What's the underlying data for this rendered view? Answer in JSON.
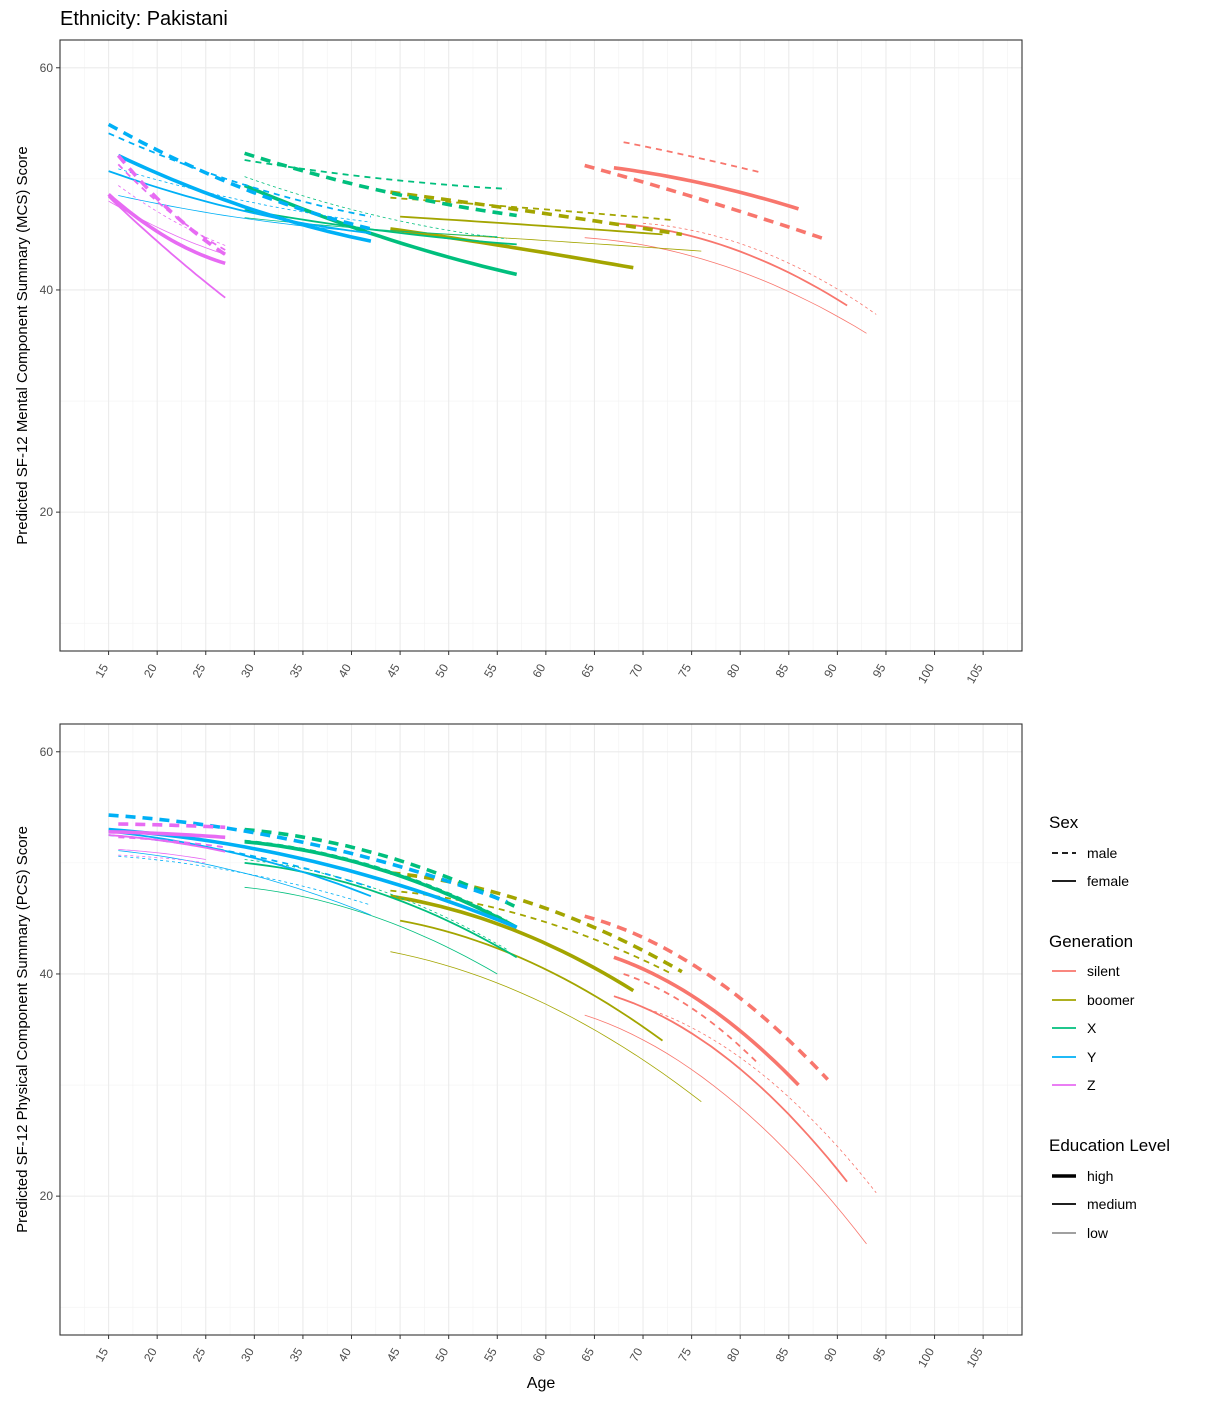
{
  "page_title": "Ethnicity: Pakistani",
  "colors": {
    "silent": "#F8766D",
    "boomer": "#A3A500",
    "X": "#00BF7D",
    "Y": "#00B0F6",
    "Z": "#E76BF3"
  },
  "legend": {
    "sex": {
      "title": "Sex",
      "items": [
        "male",
        "female"
      ]
    },
    "generation": {
      "title": "Generation",
      "items": [
        "silent",
        "boomer",
        "X",
        "Y",
        "Z"
      ]
    },
    "education": {
      "title": "Education Level",
      "items": [
        "high",
        "medium",
        "low"
      ]
    }
  },
  "chart_data": [
    {
      "type": "line",
      "id": "mcs",
      "title": "",
      "xlabel": "",
      "ylabel": "Predicted SF-12 Mental Component Summary (MCS) Score",
      "xlim": [
        10,
        109
      ],
      "ylim": [
        7.5,
        62.5
      ],
      "xticks": [
        15,
        20,
        25,
        30,
        35,
        40,
        45,
        50,
        55,
        60,
        65,
        70,
        75,
        80,
        85,
        90,
        95,
        100,
        105
      ],
      "yticks": [
        20,
        40,
        60
      ],
      "grid": true,
      "series": [
        {
          "generation": "silent",
          "sex": "male",
          "education": "high",
          "x": [
            64,
            89
          ],
          "y": [
            51.2,
            44.5
          ],
          "curv": 0.1
        },
        {
          "generation": "silent",
          "sex": "female",
          "education": "high",
          "x": [
            67,
            86
          ],
          "y": [
            51.0,
            47.3
          ],
          "curv": 0.4
        },
        {
          "generation": "silent",
          "sex": "male",
          "education": "medium",
          "x": [
            68,
            82
          ],
          "y": [
            53.3,
            50.6
          ],
          "curv": 0.1
        },
        {
          "generation": "silent",
          "sex": "female",
          "education": "medium",
          "x": [
            67,
            91
          ],
          "y": [
            46.0,
            38.6
          ],
          "curv": 0.8
        },
        {
          "generation": "silent",
          "sex": "male",
          "education": "low",
          "x": [
            70,
            94
          ],
          "y": [
            46.0,
            37.8
          ],
          "curv": 0.8
        },
        {
          "generation": "silent",
          "sex": "female",
          "education": "low",
          "x": [
            64,
            93
          ],
          "y": [
            44.7,
            36.1
          ],
          "curv": 0.8
        },
        {
          "generation": "boomer",
          "sex": "male",
          "education": "high",
          "x": [
            44,
            74
          ],
          "y": [
            48.8,
            45.0
          ],
          "curv": 0.1
        },
        {
          "generation": "boomer",
          "sex": "female",
          "education": "high",
          "x": [
            44,
            69
          ],
          "y": [
            45.5,
            42.0
          ],
          "curv": 0.1
        },
        {
          "generation": "boomer",
          "sex": "male",
          "education": "medium",
          "x": [
            44,
            73
          ],
          "y": [
            48.3,
            46.3
          ],
          "curv": 0.1
        },
        {
          "generation": "boomer",
          "sex": "female",
          "education": "medium",
          "x": [
            45,
            72
          ],
          "y": [
            46.6,
            45.0
          ],
          "curv": 0.1
        },
        {
          "generation": "boomer",
          "sex": "female",
          "education": "low",
          "x": [
            44,
            76
          ],
          "y": [
            45.3,
            43.5
          ],
          "curv": 0.1
        },
        {
          "generation": "X",
          "sex": "male",
          "education": "high",
          "x": [
            29,
            57
          ],
          "y": [
            52.3,
            46.7
          ],
          "curv": -0.4
        },
        {
          "generation": "X",
          "sex": "female",
          "education": "high",
          "x": [
            29,
            57
          ],
          "y": [
            49.4,
            41.4
          ],
          "curv": -0.3
        },
        {
          "generation": "X",
          "sex": "male",
          "education": "medium",
          "x": [
            29,
            56
          ],
          "y": [
            51.7,
            49.1
          ],
          "curv": -0.5
        },
        {
          "generation": "X",
          "sex": "female",
          "education": "medium",
          "x": [
            29,
            57
          ],
          "y": [
            47.2,
            44.1
          ],
          "curv": -0.4
        },
        {
          "generation": "X",
          "sex": "male",
          "education": "low",
          "x": [
            29,
            56
          ],
          "y": [
            50.2,
            44.6
          ],
          "curv": -0.5
        },
        {
          "generation": "X",
          "sex": "female",
          "education": "low",
          "x": [
            29,
            55
          ],
          "y": [
            46.5,
            44.8
          ],
          "curv": -0.4
        },
        {
          "generation": "Y",
          "sex": "male",
          "education": "high",
          "x": [
            15,
            42
          ],
          "y": [
            54.9,
            45.5
          ],
          "curv": -0.4
        },
        {
          "generation": "Y",
          "sex": "female",
          "education": "high",
          "x": [
            16,
            42
          ],
          "y": [
            52.1,
            44.4
          ],
          "curv": -0.4
        },
        {
          "generation": "Y",
          "sex": "male",
          "education": "medium",
          "x": [
            15,
            42
          ],
          "y": [
            54.1,
            46.6
          ],
          "curv": -0.4
        },
        {
          "generation": "Y",
          "sex": "female",
          "education": "medium",
          "x": [
            15,
            42
          ],
          "y": [
            50.7,
            45.1
          ],
          "curv": -0.5
        },
        {
          "generation": "Y",
          "sex": "male",
          "education": "low",
          "x": [
            16,
            42
          ],
          "y": [
            50.9,
            46.1
          ],
          "curv": -0.4
        },
        {
          "generation": "Y",
          "sex": "female",
          "education": "low",
          "x": [
            16,
            42
          ],
          "y": [
            48.5,
            45.2
          ],
          "curv": -0.5
        },
        {
          "generation": "Z",
          "sex": "male",
          "education": "high",
          "x": [
            16,
            27
          ],
          "y": [
            52.1,
            43.2
          ],
          "curv": -0.3
        },
        {
          "generation": "Z",
          "sex": "female",
          "education": "high",
          "x": [
            15,
            27
          ],
          "y": [
            48.6,
            42.4
          ],
          "curv": -0.5
        },
        {
          "generation": "Z",
          "sex": "male",
          "education": "medium",
          "x": [
            16,
            27
          ],
          "y": [
            51.3,
            43.6
          ],
          "curv": -0.3
        },
        {
          "generation": "Z",
          "sex": "female",
          "education": "medium",
          "x": [
            15,
            27
          ],
          "y": [
            48.4,
            39.3
          ],
          "curv": -0.1
        },
        {
          "generation": "Z",
          "sex": "male",
          "education": "low",
          "x": [
            16,
            27
          ],
          "y": [
            49.4,
            44.0
          ],
          "curv": -0.3
        },
        {
          "generation": "Z",
          "sex": "female",
          "education": "low",
          "x": [
            15,
            27
          ],
          "y": [
            48.0,
            43.2
          ],
          "curv": -0.3
        }
      ]
    },
    {
      "type": "line",
      "id": "pcs",
      "title": "",
      "xlabel": "Age",
      "ylabel": "Predicted SF-12 Physical Component Summary (PCS) Score",
      "xlim": [
        10,
        109
      ],
      "ylim": [
        7.5,
        62.5
      ],
      "xticks": [
        15,
        20,
        25,
        30,
        35,
        40,
        45,
        50,
        55,
        60,
        65,
        70,
        75,
        80,
        85,
        90,
        95,
        100,
        105
      ],
      "yticks": [
        20,
        40,
        60
      ],
      "grid": true,
      "series": [
        {
          "generation": "silent",
          "sex": "male",
          "education": "high",
          "x": [
            64,
            89
          ],
          "y": [
            45.2,
            30.5
          ],
          "curv": 0.6
        },
        {
          "generation": "silent",
          "sex": "female",
          "education": "high",
          "x": [
            67,
            86
          ],
          "y": [
            41.5,
            30.0
          ],
          "curv": 0.5
        },
        {
          "generation": "silent",
          "sex": "male",
          "education": "medium",
          "x": [
            68,
            82
          ],
          "y": [
            40.0,
            31.8
          ],
          "curv": 0.5
        },
        {
          "generation": "silent",
          "sex": "female",
          "education": "medium",
          "x": [
            67,
            91
          ],
          "y": [
            38.0,
            21.3
          ],
          "curv": 0.6
        },
        {
          "generation": "silent",
          "sex": "male",
          "education": "low",
          "x": [
            70,
            94
          ],
          "y": [
            37.0,
            20.3
          ],
          "curv": 0.6
        },
        {
          "generation": "silent",
          "sex": "female",
          "education": "low",
          "x": [
            64,
            93
          ],
          "y": [
            36.3,
            15.7
          ],
          "curv": 0.6
        },
        {
          "generation": "boomer",
          "sex": "male",
          "education": "high",
          "x": [
            44,
            74
          ],
          "y": [
            49.1,
            40.2
          ],
          "curv": 0.7
        },
        {
          "generation": "boomer",
          "sex": "female",
          "education": "high",
          "x": [
            44,
            69
          ],
          "y": [
            47.0,
            38.5
          ],
          "curv": 0.6
        },
        {
          "generation": "boomer",
          "sex": "male",
          "education": "medium",
          "x": [
            44,
            73
          ],
          "y": [
            47.5,
            40.0
          ],
          "curv": 0.7
        },
        {
          "generation": "boomer",
          "sex": "female",
          "education": "medium",
          "x": [
            45,
            72
          ],
          "y": [
            44.8,
            34.0
          ],
          "curv": 0.6
        },
        {
          "generation": "boomer",
          "sex": "female",
          "education": "low",
          "x": [
            44,
            76
          ],
          "y": [
            42.0,
            28.5
          ],
          "curv": 0.6
        },
        {
          "generation": "X",
          "sex": "male",
          "education": "high",
          "x": [
            29,
            57
          ],
          "y": [
            53.0,
            46.0
          ],
          "curv": 0.7
        },
        {
          "generation": "X",
          "sex": "female",
          "education": "high",
          "x": [
            29,
            57
          ],
          "y": [
            51.9,
            44.2
          ],
          "curv": 0.7
        },
        {
          "generation": "X",
          "sex": "male",
          "education": "medium",
          "x": [
            29,
            56
          ],
          "y": [
            52.0,
            44.8
          ],
          "curv": 0.7
        },
        {
          "generation": "X",
          "sex": "female",
          "education": "medium",
          "x": [
            29,
            57
          ],
          "y": [
            50.0,
            41.5
          ],
          "curv": 0.7
        },
        {
          "generation": "X",
          "sex": "male",
          "education": "low",
          "x": [
            29,
            56
          ],
          "y": [
            50.3,
            42.2
          ],
          "curv": 0.7
        },
        {
          "generation": "X",
          "sex": "female",
          "education": "low",
          "x": [
            29,
            55
          ],
          "y": [
            47.8,
            40.0
          ],
          "curv": 0.7
        },
        {
          "generation": "Y",
          "sex": "male",
          "education": "high",
          "x": [
            15,
            56
          ],
          "y": [
            54.3,
            46.5
          ],
          "curv": 0.7
        },
        {
          "generation": "Y",
          "sex": "female",
          "education": "high",
          "x": [
            15,
            57
          ],
          "y": [
            53.0,
            44.2
          ],
          "curv": 0.7
        },
        {
          "generation": "Y",
          "sex": "male",
          "education": "medium",
          "x": [
            15,
            42
          ],
          "y": [
            52.5,
            47.8
          ],
          "curv": 0.6
        },
        {
          "generation": "Y",
          "sex": "female",
          "education": "medium",
          "x": [
            15,
            42
          ],
          "y": [
            52.8,
            47.0
          ],
          "curv": 0.6
        },
        {
          "generation": "Y",
          "sex": "male",
          "education": "low",
          "x": [
            16,
            42
          ],
          "y": [
            50.6,
            46.2
          ],
          "curv": 0.6
        },
        {
          "generation": "Y",
          "sex": "female",
          "education": "low",
          "x": [
            16,
            42
          ],
          "y": [
            51.1,
            45.3
          ],
          "curv": 0.6
        },
        {
          "generation": "Z",
          "sex": "male",
          "education": "high",
          "x": [
            16,
            27
          ],
          "y": [
            53.5,
            53.2
          ],
          "curv": 0.5
        },
        {
          "generation": "Z",
          "sex": "female",
          "education": "high",
          "x": [
            15,
            27
          ],
          "y": [
            52.8,
            52.3
          ],
          "curv": 0.5
        },
        {
          "generation": "Z",
          "sex": "male",
          "education": "medium",
          "x": [
            16,
            27
          ],
          "y": [
            52.3,
            51.4
          ],
          "curv": 0.5
        },
        {
          "generation": "Z",
          "sex": "female",
          "education": "medium",
          "x": [
            15,
            27
          ],
          "y": [
            52.5,
            51.0
          ],
          "curv": 0.5
        },
        {
          "generation": "Z",
          "sex": "male",
          "education": "low",
          "x": [
            16,
            25
          ],
          "y": [
            50.7,
            50.0
          ],
          "curv": 0.5
        },
        {
          "generation": "Z",
          "sex": "female",
          "education": "low",
          "x": [
            16,
            25
          ],
          "y": [
            51.2,
            50.3
          ],
          "curv": 0.5
        }
      ]
    }
  ]
}
